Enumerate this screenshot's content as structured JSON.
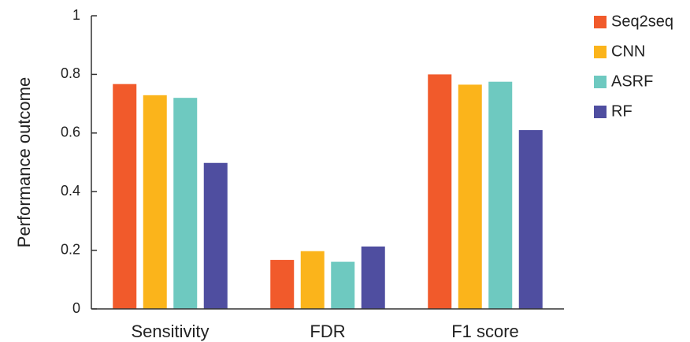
{
  "chart_data": {
    "type": "bar",
    "title": "",
    "xlabel": "",
    "ylabel": "Performance outcome",
    "ylim": [
      0,
      1
    ],
    "yticks": [
      0,
      0.2,
      0.4,
      0.6,
      0.8,
      1
    ],
    "ytick_labels": [
      "0",
      "0.2",
      "0.4",
      "0.6",
      "0.8",
      "1"
    ],
    "grid": false,
    "legend": "top-right",
    "categories": [
      "Sensitivity",
      "FDR",
      "F1 score"
    ],
    "series": [
      {
        "name": "Seq2seq",
        "color": "#f15a2b",
        "values": [
          0.767,
          0.167,
          0.8
        ]
      },
      {
        "name": "CNN",
        "color": "#fbb41b",
        "values": [
          0.729,
          0.197,
          0.765
        ]
      },
      {
        "name": "ASRF",
        "color": "#6ec9c0",
        "values": [
          0.72,
          0.161,
          0.775
        ]
      },
      {
        "name": "RF",
        "color": "#4f4ea0",
        "values": [
          0.498,
          0.213,
          0.61
        ]
      }
    ]
  }
}
